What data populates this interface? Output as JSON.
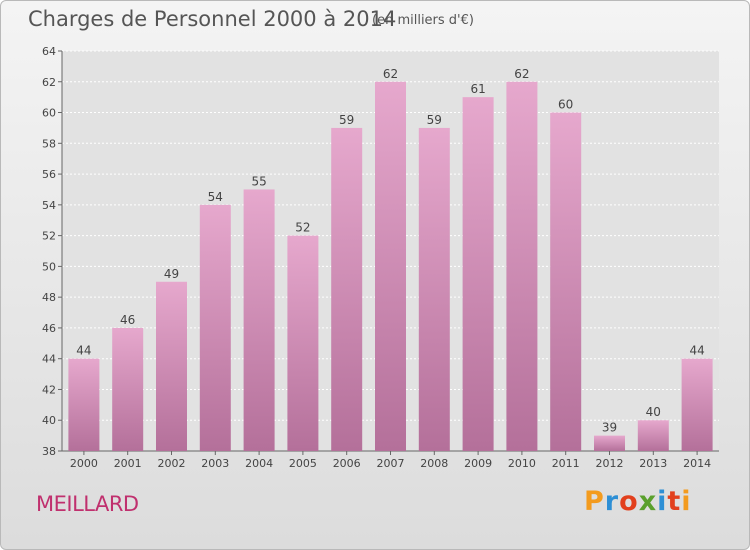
{
  "header": {
    "title": "Charges de Personnel 2000 à 2014",
    "unit_note": "(en milliers d'€)"
  },
  "footer": {
    "commune": "MEILLARD",
    "brand": "Proxiti"
  },
  "colors": {
    "bar_light": "#e6a8cd",
    "bar_dark": "#b4709a",
    "label": "#444444",
    "commune": "#c0306e"
  },
  "chart_data": {
    "type": "bar",
    "categories": [
      "2000",
      "2001",
      "2002",
      "2003",
      "2004",
      "2005",
      "2006",
      "2007",
      "2008",
      "2009",
      "2010",
      "2011",
      "2012",
      "2013",
      "2014"
    ],
    "values": [
      44,
      46,
      49,
      54,
      55,
      52,
      59,
      62,
      59,
      61,
      62,
      60,
      39,
      40,
      44
    ],
    "ylim": [
      38,
      64
    ],
    "yticks": [
      38,
      40,
      42,
      44,
      46,
      48,
      50,
      52,
      54,
      56,
      58,
      60,
      62,
      64
    ],
    "grid": true,
    "data_labels": true
  }
}
